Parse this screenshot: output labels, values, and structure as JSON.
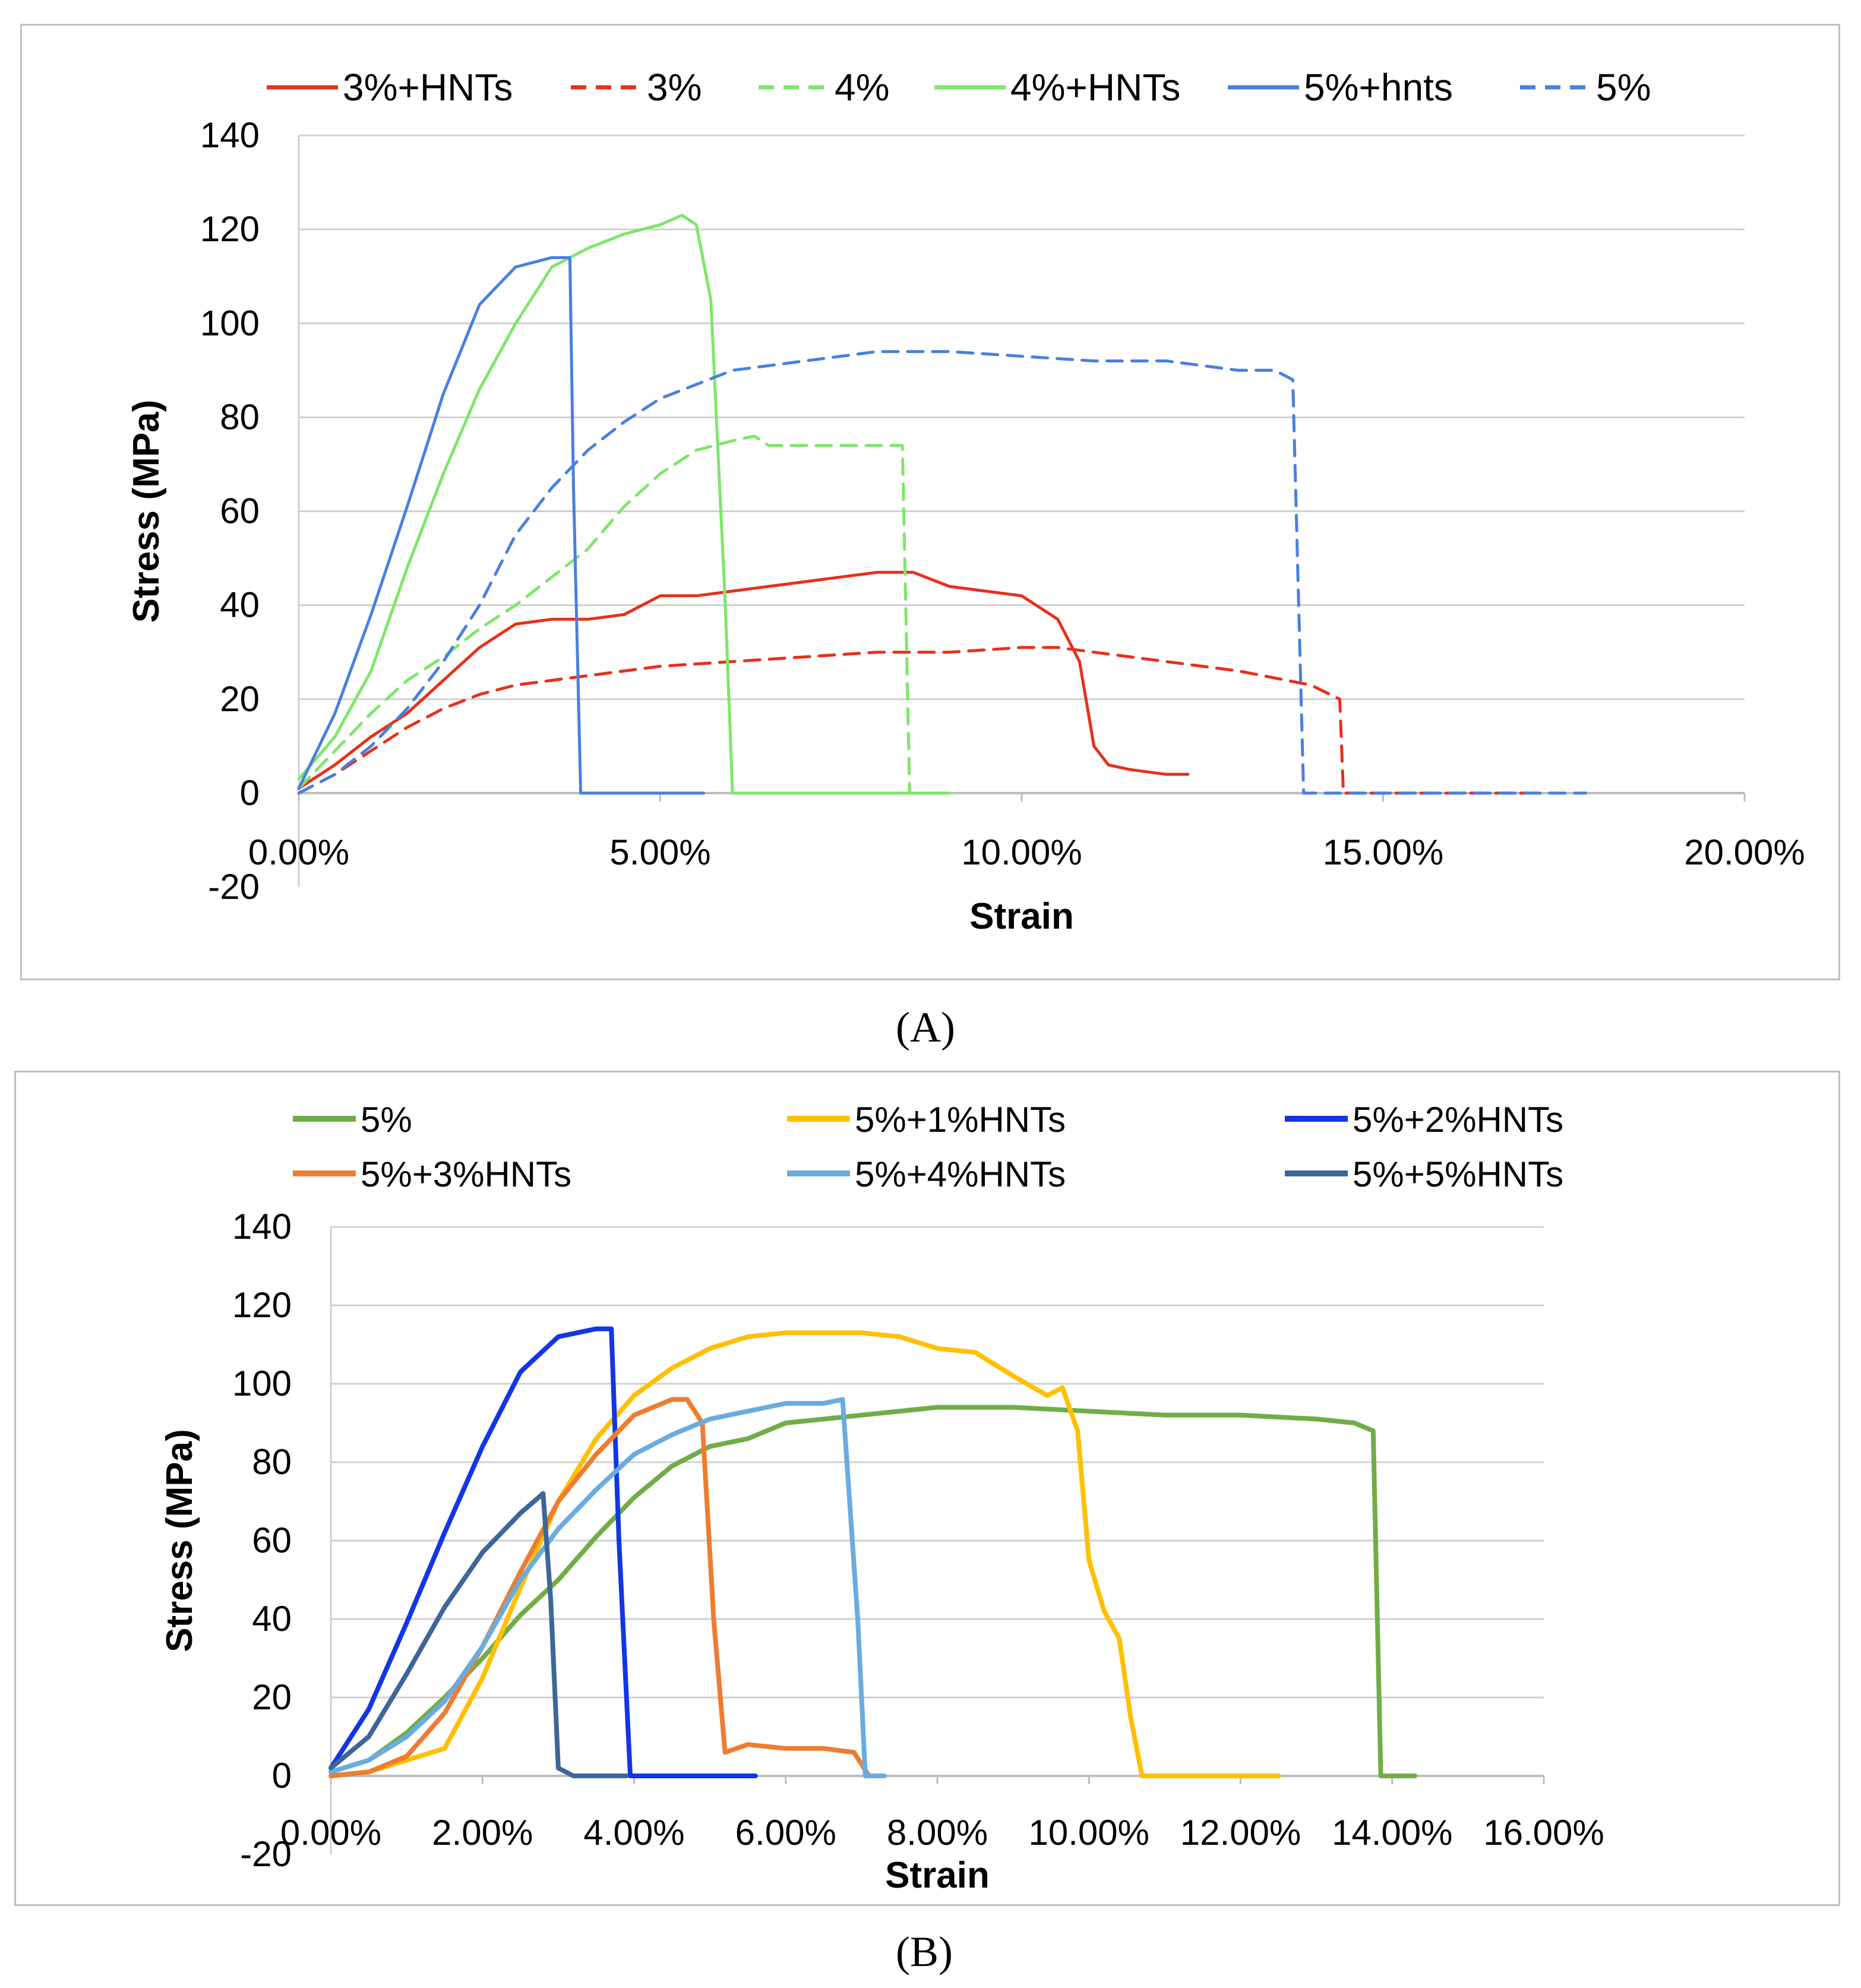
{
  "chart_data": [
    {
      "type": "line",
      "panel_label": "(A)",
      "xlabel": "Strain",
      "ylabel": "Stress (MPa)",
      "xlim": [
        0,
        0.2
      ],
      "ylim": [
        -20,
        140
      ],
      "x_ticks": [
        0,
        0.05,
        0.1,
        0.15,
        0.2
      ],
      "x_tick_labels": [
        "0.00%",
        "5.00%",
        "10.00%",
        "15.00%",
        "20.00%"
      ],
      "y_ticks": [
        -20,
        0,
        20,
        40,
        60,
        80,
        100,
        120,
        140
      ],
      "y_tick_labels": [
        "-20",
        "0",
        "20",
        "40",
        "60",
        "80",
        "100",
        "120",
        "140"
      ],
      "grid": "horizontal",
      "legend_position": "top",
      "series": [
        {
          "name": "3%+HNTs",
          "color": "#e8301c",
          "dash": "solid",
          "x": [
            0,
            0.005,
            0.01,
            0.015,
            0.02,
            0.025,
            0.03,
            0.035,
            0.04,
            0.045,
            0.05,
            0.055,
            0.06,
            0.065,
            0.07,
            0.075,
            0.08,
            0.085,
            0.09,
            0.095,
            0.1,
            0.105,
            0.108,
            0.11,
            0.112,
            0.115,
            0.12,
            0.123
          ],
          "y": [
            1,
            6,
            12,
            17,
            24,
            31,
            36,
            37,
            37,
            38,
            42,
            42,
            43,
            44,
            45,
            46,
            47,
            47,
            44,
            43,
            42,
            37,
            28,
            10,
            6,
            5,
            4,
            4
          ]
        },
        {
          "name": "3%",
          "color": "#e8301c",
          "dash": "dashed",
          "x": [
            0,
            0.005,
            0.01,
            0.015,
            0.02,
            0.025,
            0.03,
            0.04,
            0.05,
            0.06,
            0.07,
            0.08,
            0.09,
            0.1,
            0.105,
            0.11,
            0.12,
            0.13,
            0.14,
            0.144,
            0.1445,
            0.15,
            0.16,
            0.17
          ],
          "y": [
            0,
            4,
            9,
            14,
            18,
            21,
            23,
            25,
            27,
            28,
            29,
            30,
            30,
            31,
            31,
            30,
            28,
            26,
            23,
            20,
            0,
            0,
            0,
            0
          ]
        },
        {
          "name": "4%",
          "color": "#7ee66a",
          "dash": "dashed",
          "x": [
            0,
            0.005,
            0.01,
            0.015,
            0.02,
            0.025,
            0.03,
            0.035,
            0.04,
            0.045,
            0.05,
            0.055,
            0.06,
            0.063,
            0.065,
            0.07,
            0.075,
            0.08,
            0.0835,
            0.0845,
            0.09
          ],
          "y": [
            1,
            9,
            17,
            24,
            29,
            35,
            40,
            46,
            52,
            61,
            68,
            73,
            75,
            76,
            74,
            74,
            74,
            74,
            74,
            0,
            0
          ]
        },
        {
          "name": "4%+HNTs",
          "color": "#7ee66a",
          "dash": "solid",
          "x": [
            0,
            0.005,
            0.01,
            0.015,
            0.02,
            0.025,
            0.03,
            0.035,
            0.04,
            0.045,
            0.05,
            0.053,
            0.055,
            0.057,
            0.059,
            0.06,
            0.065,
            0.07,
            0.08,
            0.09
          ],
          "y": [
            3,
            12,
            26,
            48,
            68,
            86,
            100,
            112,
            116,
            119,
            121,
            123,
            121,
            105,
            40,
            0,
            0,
            0,
            0,
            0
          ]
        },
        {
          "name": "5%+hnts",
          "color": "#4a7fe0",
          "dash": "solid",
          "x": [
            0,
            0.005,
            0.01,
            0.015,
            0.02,
            0.025,
            0.03,
            0.035,
            0.0375,
            0.038,
            0.039,
            0.045,
            0.05,
            0.056
          ],
          "y": [
            1,
            17,
            38,
            61,
            85,
            104,
            112,
            114,
            114,
            65,
            0,
            0,
            0,
            0
          ]
        },
        {
          "name": "5%",
          "color": "#4a7fe0",
          "dash": "dashed",
          "x": [
            0,
            0.005,
            0.01,
            0.015,
            0.02,
            0.025,
            0.03,
            0.035,
            0.04,
            0.045,
            0.05,
            0.055,
            0.06,
            0.07,
            0.08,
            0.09,
            0.1,
            0.11,
            0.12,
            0.13,
            0.135,
            0.1375,
            0.139,
            0.14,
            0.15,
            0.16,
            0.17,
            0.178
          ],
          "y": [
            0,
            4,
            10,
            18,
            28,
            40,
            55,
            65,
            73,
            79,
            84,
            87,
            90,
            92,
            94,
            94,
            93,
            92,
            92,
            90,
            90,
            88,
            0,
            0,
            0,
            0,
            0,
            0
          ]
        }
      ]
    },
    {
      "type": "line",
      "panel_label": "(B)",
      "xlabel": "Strain",
      "ylabel": "Stress (MPa)",
      "xlim": [
        0,
        0.16
      ],
      "ylim": [
        -20,
        140
      ],
      "x_ticks": [
        0,
        0.02,
        0.04,
        0.06,
        0.08,
        0.1,
        0.12,
        0.14,
        0.16
      ],
      "x_tick_labels": [
        "0.00%",
        "2.00%",
        "4.00%",
        "6.00%",
        "8.00%",
        "10.00%",
        "12.00%",
        "14.00%",
        "16.00%"
      ],
      "y_ticks": [
        -20,
        0,
        20,
        40,
        60,
        80,
        100,
        120,
        140
      ],
      "y_tick_labels": [
        "-20",
        "0",
        "20",
        "40",
        "60",
        "80",
        "100",
        "120",
        "140"
      ],
      "grid": "horizontal",
      "legend_position": "top",
      "series": [
        {
          "name": "5%",
          "color": "#70ad47",
          "x": [
            0,
            0.005,
            0.01,
            0.015,
            0.02,
            0.025,
            0.03,
            0.035,
            0.04,
            0.045,
            0.05,
            0.055,
            0.06,
            0.07,
            0.08,
            0.09,
            0.1,
            0.11,
            0.12,
            0.13,
            0.135,
            0.1375,
            0.1385,
            0.14,
            0.143
          ],
          "y": [
            1,
            4,
            11,
            20,
            30,
            41,
            50,
            61,
            71,
            79,
            84,
            86,
            90,
            92,
            94,
            94,
            93,
            92,
            92,
            91,
            90,
            88,
            0,
            0,
            0
          ]
        },
        {
          "name": "5%+1%HNTs",
          "color": "#ffc000",
          "x": [
            0,
            0.005,
            0.01,
            0.015,
            0.02,
            0.025,
            0.03,
            0.035,
            0.04,
            0.045,
            0.05,
            0.055,
            0.06,
            0.065,
            0.07,
            0.075,
            0.08,
            0.085,
            0.09,
            0.0945,
            0.0965,
            0.0985,
            0.1,
            0.102,
            0.104,
            0.1055,
            0.107,
            0.11,
            0.12,
            0.125
          ],
          "y": [
            0,
            1,
            4,
            7,
            25,
            48,
            70,
            86,
            97,
            104,
            109,
            112,
            113,
            113,
            113,
            112,
            109,
            108,
            102,
            97,
            99,
            88,
            55,
            42,
            35,
            15,
            0,
            0,
            0,
            0
          ]
        },
        {
          "name": "5%+2%HNTs",
          "color": "#1236e6",
          "x": [
            0,
            0.005,
            0.01,
            0.015,
            0.02,
            0.025,
            0.03,
            0.035,
            0.037,
            0.038,
            0.0395,
            0.045,
            0.05,
            0.056
          ],
          "y": [
            2,
            17,
            39,
            62,
            84,
            103,
            112,
            114,
            114,
            60,
            0,
            0,
            0,
            0
          ]
        },
        {
          "name": "5%+3%HNTs",
          "color": "#ed7d31",
          "x": [
            0,
            0.005,
            0.01,
            0.015,
            0.02,
            0.025,
            0.03,
            0.035,
            0.04,
            0.045,
            0.047,
            0.049,
            0.0505,
            0.052,
            0.055,
            0.06,
            0.065,
            0.069,
            0.071
          ],
          "y": [
            0,
            1,
            5,
            16,
            33,
            52,
            70,
            82,
            92,
            96,
            96,
            90,
            40,
            6,
            8,
            7,
            7,
            6,
            0
          ]
        },
        {
          "name": "5%+4%HNTs",
          "color": "#6babdf",
          "x": [
            0,
            0.005,
            0.01,
            0.015,
            0.02,
            0.025,
            0.03,
            0.035,
            0.04,
            0.045,
            0.05,
            0.055,
            0.06,
            0.065,
            0.0675,
            0.0695,
            0.0705,
            0.073
          ],
          "y": [
            1,
            4,
            10,
            19,
            33,
            50,
            63,
            73,
            82,
            87,
            91,
            93,
            95,
            95,
            96,
            40,
            0,
            0
          ]
        },
        {
          "name": "5%+5%HNTs",
          "color": "#3d6699",
          "x": [
            0,
            0.005,
            0.01,
            0.015,
            0.02,
            0.025,
            0.028,
            0.029,
            0.03,
            0.032,
            0.035,
            0.039
          ],
          "y": [
            2,
            10,
            26,
            43,
            57,
            67,
            72,
            45,
            2,
            0,
            0,
            0
          ]
        }
      ]
    }
  ]
}
